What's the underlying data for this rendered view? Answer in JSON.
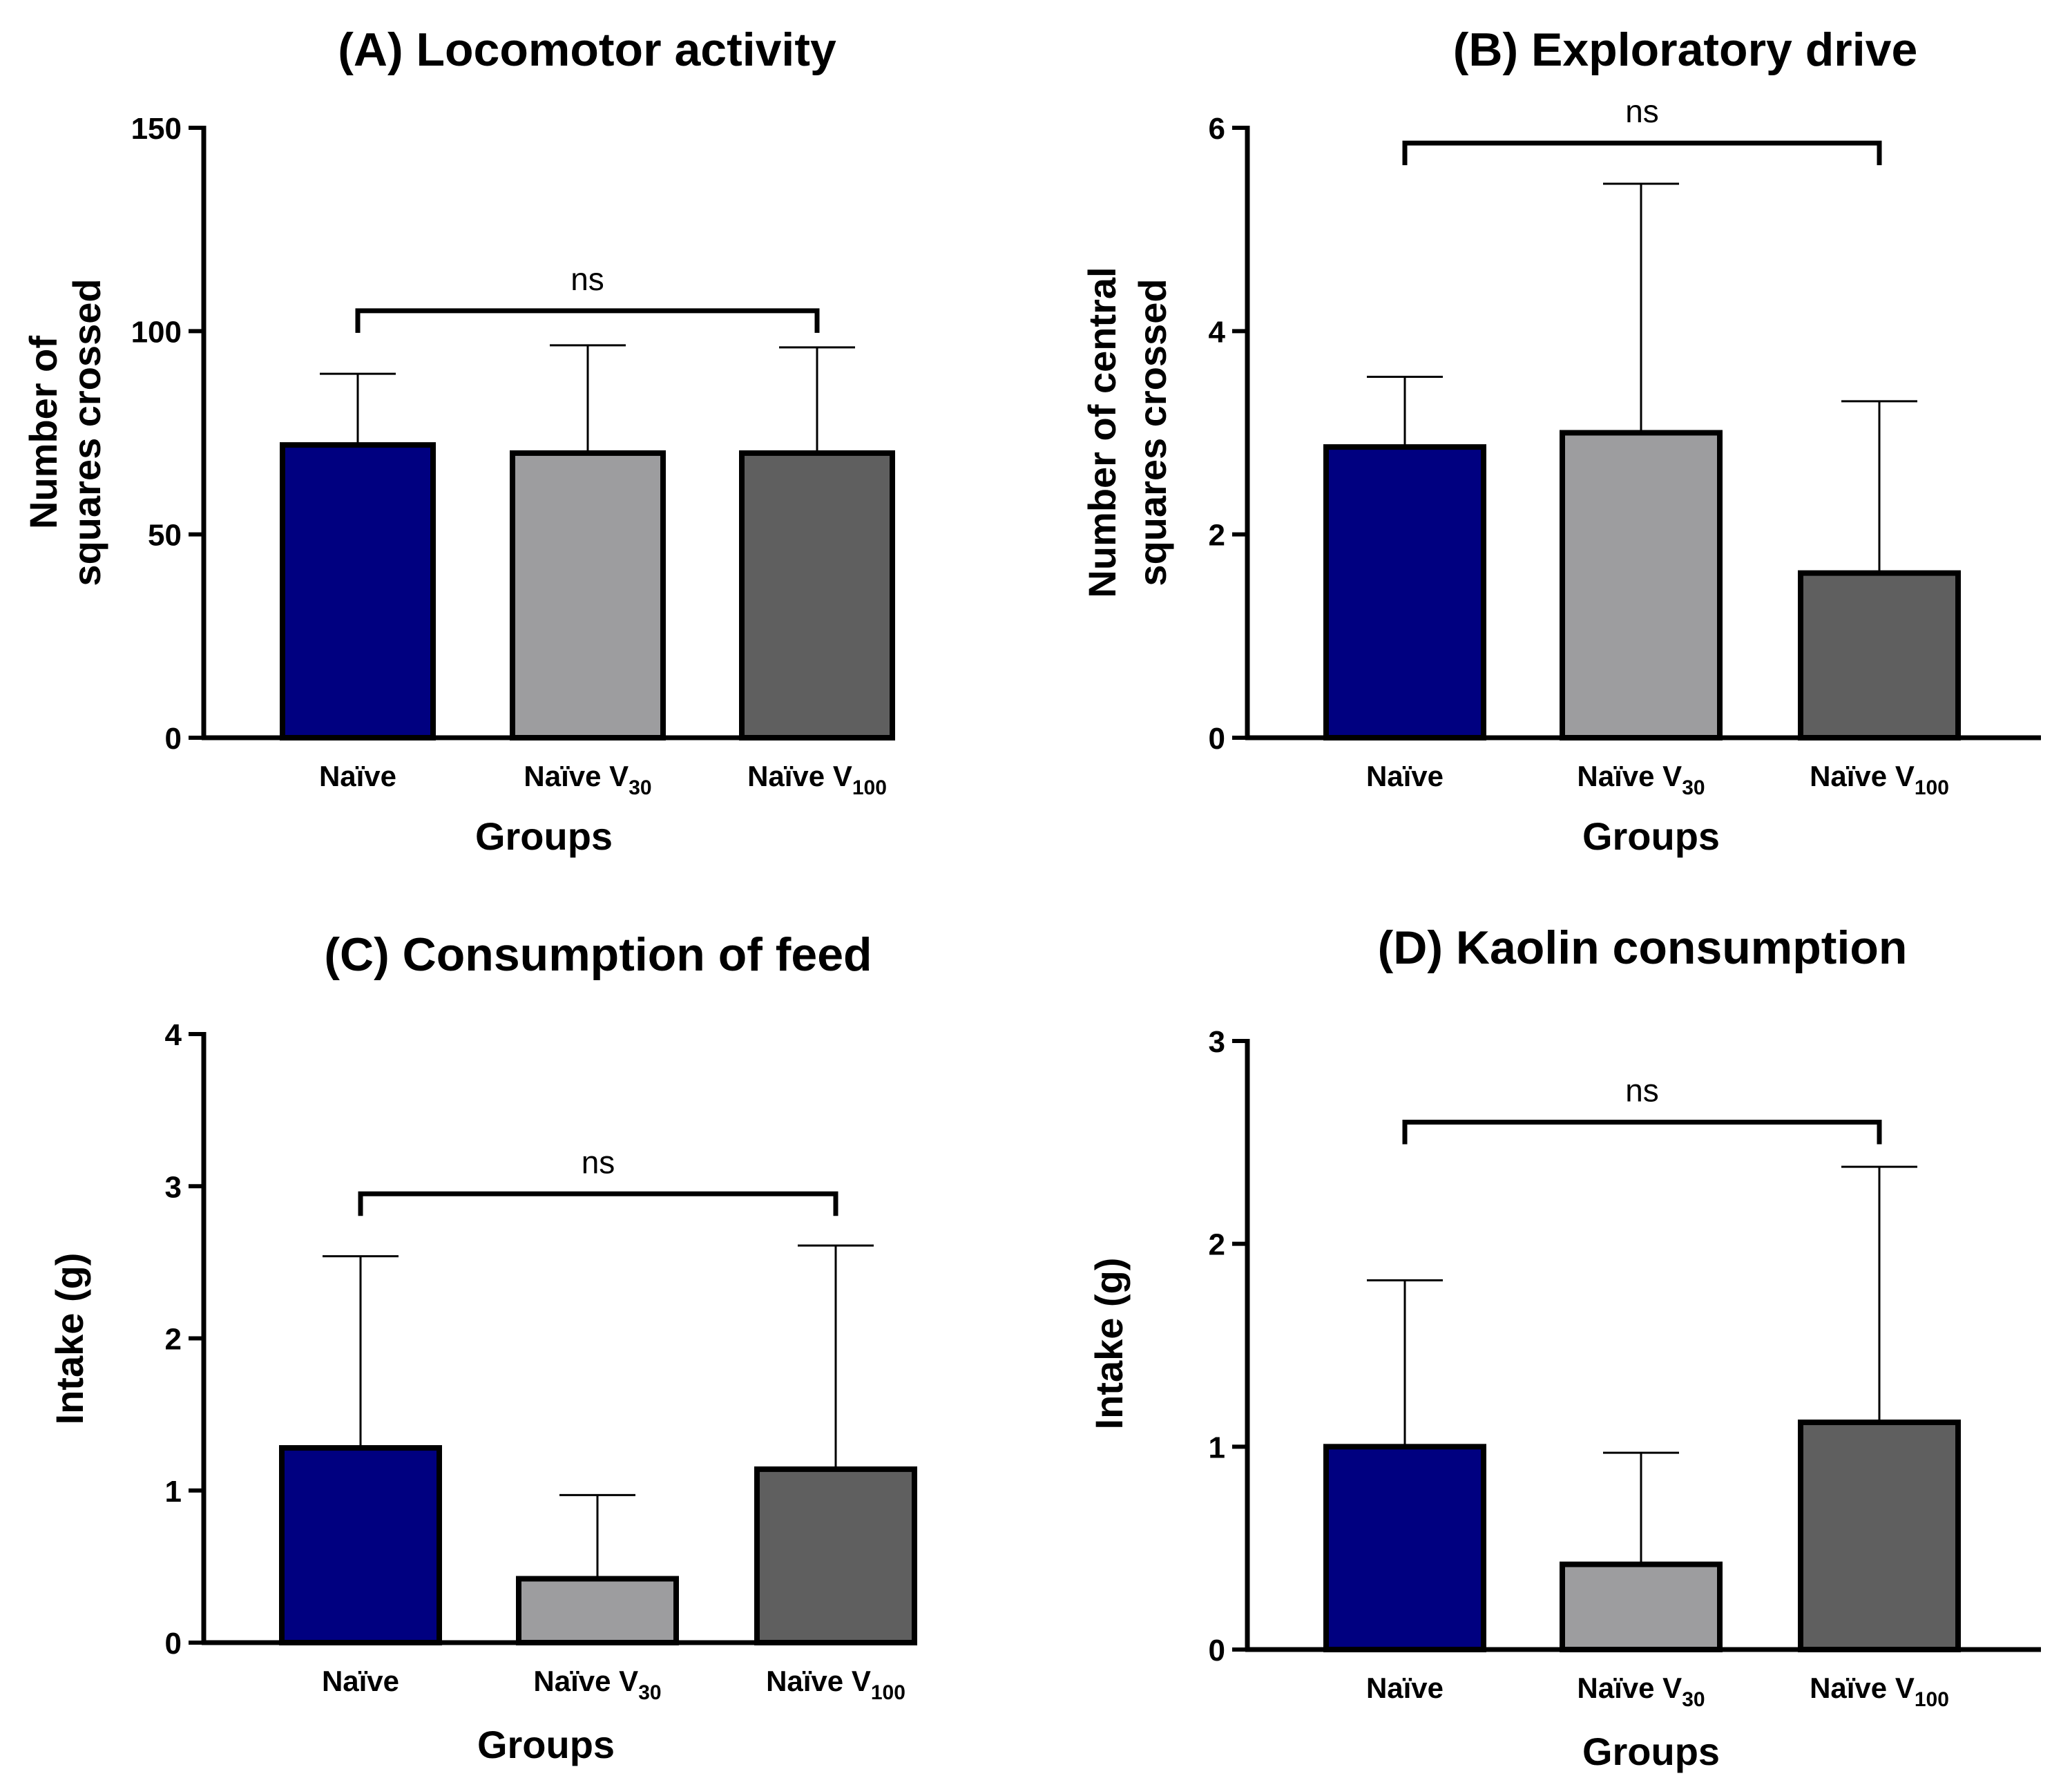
{
  "chart_data": [
    {
      "type": "bar",
      "title": "(A) Locomotor activity",
      "xlabel": "Groups",
      "ylabel": [
        "Number of",
        "squares crossed"
      ],
      "ylim": [
        0,
        150
      ],
      "yticks": [
        "0",
        "50",
        "100",
        "150"
      ],
      "categories": [
        {
          "base": "Naïve",
          "sub": ""
        },
        {
          "base": "Naïve V",
          "sub": "30"
        },
        {
          "base": "Naïve V",
          "sub": "100"
        }
      ],
      "values": [
        72,
        70,
        70
      ],
      "errors": [
        17.5,
        26.5,
        26
      ],
      "colors": [
        "#000080",
        "#9d9d9f",
        "#5f5f5f"
      ],
      "significance": {
        "from": 0,
        "to": 2,
        "label": "ns",
        "y": 105
      }
    },
    {
      "type": "bar",
      "title": "(B) Exploratory drive",
      "xlabel": "Groups",
      "ylabel": [
        "Number of central",
        "squares crossed"
      ],
      "ylim": [
        0,
        6
      ],
      "yticks": [
        "0",
        "2",
        "4",
        "6"
      ],
      "categories": [
        {
          "base": "Naïve",
          "sub": ""
        },
        {
          "base": "Naïve V",
          "sub": "30"
        },
        {
          "base": "Naïve V",
          "sub": "100"
        }
      ],
      "values": [
        2.86,
        3.0,
        1.62
      ],
      "errors": [
        0.69,
        2.45,
        1.69
      ],
      "colors": [
        "#000080",
        "#9d9d9f",
        "#5f5f5f"
      ],
      "significance": {
        "from": 0,
        "to": 2,
        "label": "ns",
        "y": 5.85
      }
    },
    {
      "type": "bar",
      "title": "(C) Consumption of feed",
      "xlabel": "Groups",
      "ylabel": [
        "Intake (g)"
      ],
      "ylim": [
        0,
        4
      ],
      "yticks": [
        "0",
        "1",
        "2",
        "3",
        "4"
      ],
      "categories": [
        {
          "base": "Naïve",
          "sub": ""
        },
        {
          "base": "Naïve V",
          "sub": "30"
        },
        {
          "base": "Naïve V",
          "sub": "100"
        }
      ],
      "values": [
        1.28,
        0.42,
        1.14
      ],
      "errors": [
        1.26,
        0.55,
        1.47
      ],
      "colors": [
        "#000080",
        "#9d9d9f",
        "#5f5f5f"
      ],
      "significance": {
        "from": 0,
        "to": 2,
        "label": "ns",
        "y": 2.95
      }
    },
    {
      "type": "bar",
      "title": "(D) Kaolin consumption",
      "xlabel": "Groups",
      "ylabel": [
        "Intake (g)"
      ],
      "ylim": [
        0,
        3
      ],
      "yticks": [
        "0",
        "1",
        "2",
        "3"
      ],
      "categories": [
        {
          "base": "Naïve",
          "sub": ""
        },
        {
          "base": "Naïve V",
          "sub": "30"
        },
        {
          "base": "Naïve V",
          "sub": "100"
        }
      ],
      "values": [
        1.0,
        0.42,
        1.12
      ],
      "errors": [
        0.82,
        0.55,
        1.26
      ],
      "colors": [
        "#000080",
        "#9d9d9f",
        "#5f5f5f"
      ],
      "significance": {
        "from": 0,
        "to": 2,
        "label": "ns",
        "y": 2.6
      }
    }
  ]
}
